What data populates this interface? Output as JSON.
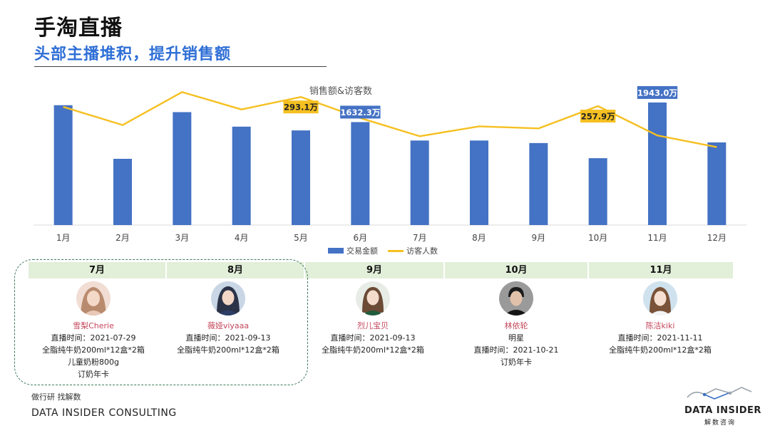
{
  "header": {
    "title": "手淘直播",
    "subtitle": "头部主播堆积，提升销售额"
  },
  "chart_data": {
    "type": "bar",
    "title": "销售额&访客数",
    "categories": [
      "1月",
      "2月",
      "3月",
      "4月",
      "5月",
      "6月",
      "7月",
      "8月",
      "9月",
      "10月",
      "11月",
      "12月"
    ],
    "series": [
      {
        "name": "交易金额",
        "type": "bar",
        "values": [
          1900,
          1050,
          1790,
          1560,
          1500,
          1632.3,
          1340,
          1340,
          1300,
          1060,
          1943.0,
          1310
        ],
        "labels": {
          "5": "1632.3万",
          "10": "1943.0万"
        }
      },
      {
        "name": "访客人数",
        "type": "line",
        "values": [
          255,
          185,
          312,
          245,
          293.1,
          212,
          142,
          180,
          172,
          257.9,
          145,
          100
        ],
        "labels": {
          "4": "293.1万",
          "9": "257.9万"
        }
      }
    ],
    "bar_ylim": [
      0,
      2100
    ],
    "line_ylim": [
      -200,
      310
    ],
    "grid": false,
    "legend_position": "bottom",
    "colors": {
      "bar": "#4472c4",
      "line": "#f5c021",
      "bar_label_bg": "#4472c4",
      "line_label_bg": "#f5c021"
    }
  },
  "timeline": {
    "months": [
      {
        "label": "7月"
      },
      {
        "label": "8月"
      },
      {
        "label": "9月"
      },
      {
        "label": "10月"
      },
      {
        "label": "11月"
      }
    ],
    "hosts": [
      {
        "name": "雪梨Cherie",
        "lines": [
          "直播时间：2021-07-29",
          "全脂纯牛奶200ml*12盒*2箱",
          "儿童奶粉800g",
          "订奶年卡"
        ]
      },
      {
        "name": "薇娅viyaaa",
        "lines": [
          "直播时间：2021-09-13",
          "全脂纯牛奶200ml*12盒*2箱"
        ]
      },
      {
        "name": "烈儿宝贝",
        "lines": [
          "直播时间：2021-09-13",
          "全脂纯牛奶200ml*12盒*2箱"
        ]
      },
      {
        "name": "林依轮",
        "lines": [
          "明星",
          "直播时间：2021-10-21",
          "订奶年卡"
        ]
      },
      {
        "name": "陈洁kiki",
        "lines": [
          "直播时间：2021-11-11",
          "全脂纯牛奶200ml*12盒*2箱"
        ]
      }
    ]
  },
  "footer": {
    "source": "做行研 找解数",
    "brand": "DATA INSIDER CONSULTING",
    "logo_text": "DATA INSIDER",
    "logo_sub": "解数咨询"
  }
}
